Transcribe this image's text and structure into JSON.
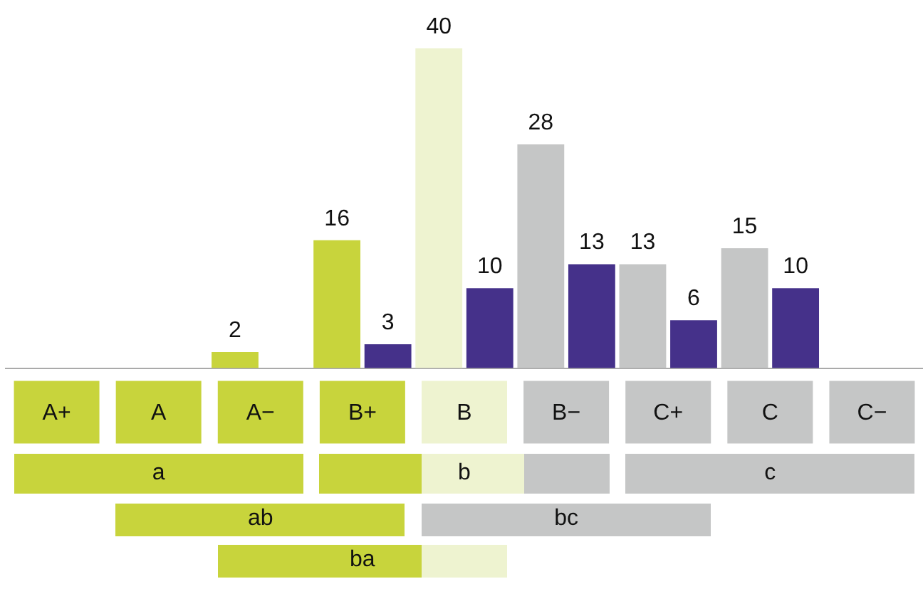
{
  "chart_data": {
    "type": "bar",
    "categories": [
      "A+",
      "A",
      "A−",
      "B+",
      "B",
      "B−",
      "C+",
      "C",
      "C−"
    ],
    "series": [
      {
        "colors": [
          "#c8d43c",
          "#c8d43c",
          "#c8d43c",
          "#c8d43c",
          "#eef3d0",
          "#c5c6c6",
          "#c5c6c6",
          "#c5c6c6",
          "#c5c6c6"
        ],
        "values": [
          null,
          null,
          2,
          16,
          40,
          28,
          13,
          15,
          null
        ]
      },
      {
        "color": "#45318a",
        "values": [
          null,
          null,
          null,
          3,
          10,
          13,
          6,
          10,
          null
        ]
      }
    ],
    "data_labels": true,
    "grid": false,
    "legend": false,
    "tick_labels": "x",
    "annotations": [
      "a",
      "b",
      "c",
      "ab",
      "bc",
      "ba"
    ]
  }
}
